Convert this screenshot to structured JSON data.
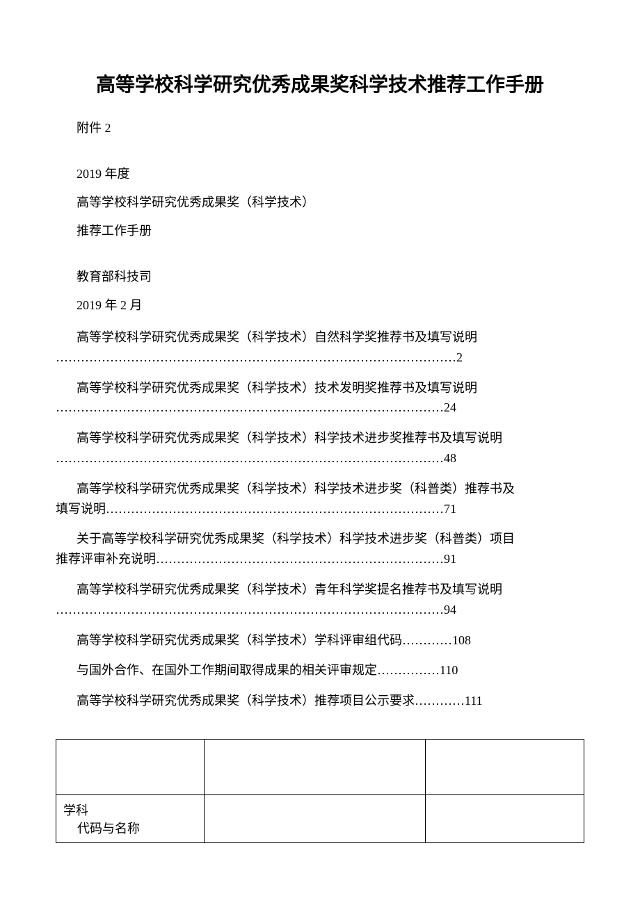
{
  "title": "高等学校科学研究优秀成果奖科学技术推荐工作手册",
  "attachment": "附件 2",
  "year": "2019 年度",
  "subtitle1": "高等学校科学研究优秀成果奖（科学技术）",
  "subtitle2": "推荐工作手册",
  "department": "教育部科技司",
  "date": "2019 年 2 月",
  "toc": {
    "item1_line1": "高等学校科学研究优秀成果奖（科学技术）自然科学奖推荐书及填写说明",
    "item1_line2": "……………………………………………………………………………………2",
    "item2_line1": "高等学校科学研究优秀成果奖（科学技术）技术发明奖推荐书及填写说明",
    "item2_line2": "…………………………………………………………………………………24",
    "item3_line1": "高等学校科学研究优秀成果奖（科学技术）科学技术进步奖推荐书及填写说明",
    "item3_line2": "…………………………………………………………………………………48",
    "item4_line1": "高等学校科学研究优秀成果奖（科学技术）科学技术进步奖（科普类）推荐书及",
    "item4_line2": "填写说明………………………………………………………………………71",
    "item5_line1": "关于高等学校科学研究优秀成果奖（科学技术）科学技术进步奖（科普类）项目",
    "item5_line2": "推荐评审补充说明……………………………………………………………91",
    "item6_line1": "高等学校科学研究优秀成果奖（科学技术）青年科学奖提名推荐书及填写说明",
    "item6_line2": "…………………………………………………………………………………94",
    "item7": "高等学校科学研究优秀成果奖（科学技术）学科评审组代码…………108",
    "item8": "与国外合作、在国外工作期间取得成果的相关评审规定……………110",
    "item9": "高等学校科学研究优秀成果奖（科学技术）推荐项目公示要求…………111"
  },
  "table": {
    "row1_col1": "",
    "row1_col2": "",
    "row1_col3": "",
    "row2_col1_line1": "学科",
    "row2_col1_line2": "代码与名称"
  },
  "colors": {
    "text": "#000000",
    "background": "#ffffff",
    "border": "#000000"
  },
  "typography": {
    "title_fontsize": 28,
    "body_fontsize": 18,
    "title_font": "SimHei",
    "body_font": "SimSun"
  }
}
